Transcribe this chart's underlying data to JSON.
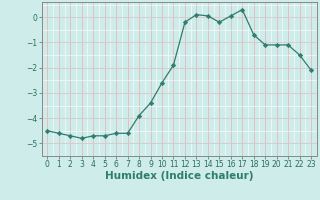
{
  "x": [
    0,
    1,
    2,
    3,
    4,
    5,
    6,
    7,
    8,
    9,
    10,
    11,
    12,
    13,
    14,
    15,
    16,
    17,
    18,
    19,
    20,
    21,
    22,
    23
  ],
  "y": [
    -4.5,
    -4.6,
    -4.7,
    -4.8,
    -4.7,
    -4.7,
    -4.6,
    -4.6,
    -3.9,
    -3.4,
    -2.6,
    -1.9,
    -0.2,
    0.1,
    0.05,
    -0.2,
    0.05,
    0.3,
    -0.7,
    -1.1,
    -1.1,
    -1.1,
    -1.5,
    -2.1
  ],
  "line_color": "#2e7d6e",
  "marker": "D",
  "marker_size": 2.2,
  "bg_color": "#ceecea",
  "xlabel": "Humidex (Indice chaleur)",
  "ylim": [
    -5.5,
    0.6
  ],
  "xlim": [
    -0.5,
    23.5
  ],
  "yticks": [
    0,
    -1,
    -2,
    -3,
    -4,
    -5
  ],
  "xticks": [
    0,
    1,
    2,
    3,
    4,
    5,
    6,
    7,
    8,
    9,
    10,
    11,
    12,
    13,
    14,
    15,
    16,
    17,
    18,
    19,
    20,
    21,
    22,
    23
  ],
  "tick_labelsize": 5.5,
  "xlabel_fontsize": 7.5,
  "major_grid_color": "#e8c8c8",
  "minor_grid_color": "#ffffff",
  "spine_color": "#888888"
}
